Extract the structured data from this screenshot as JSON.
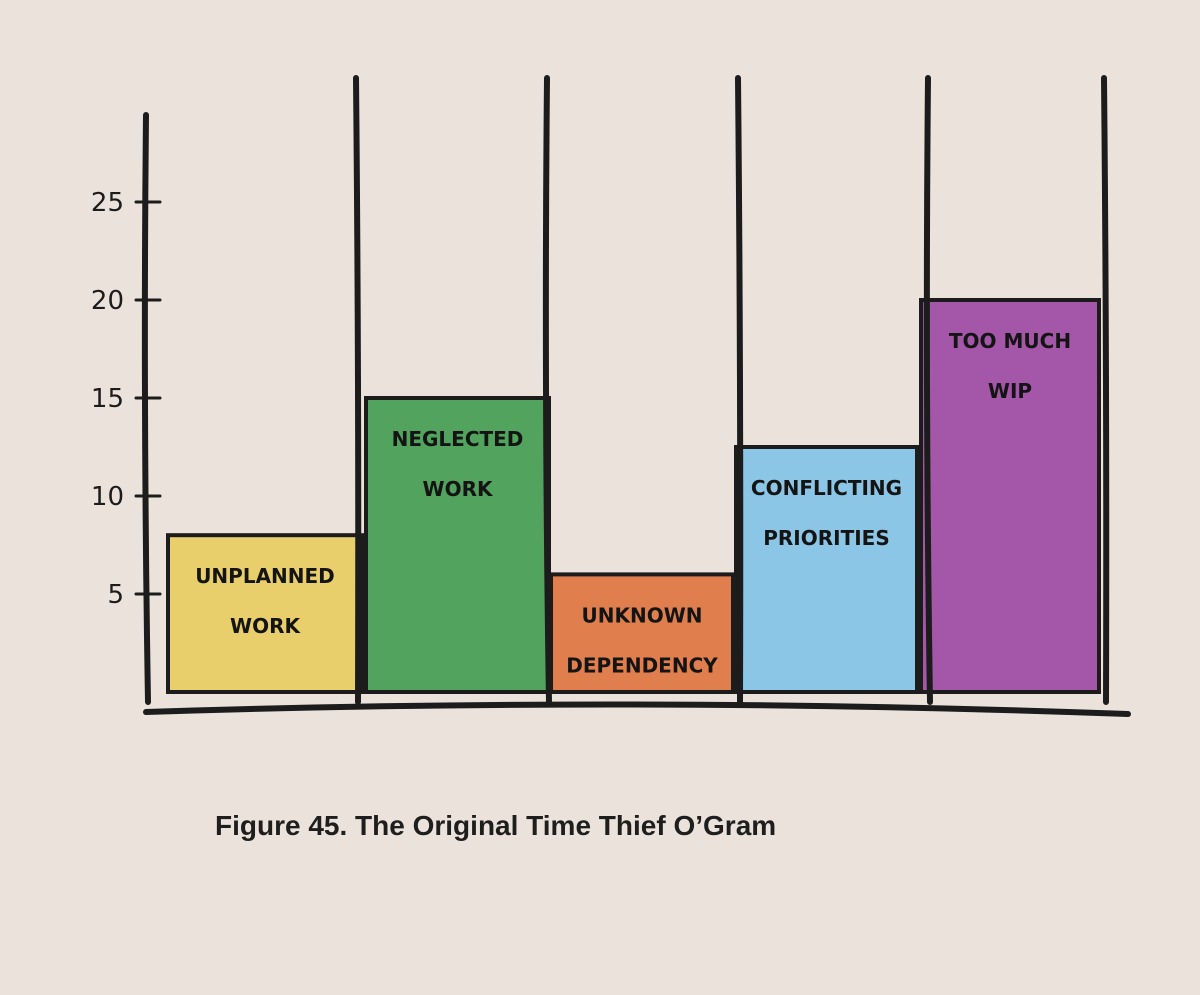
{
  "colors": {
    "page_background": "#ebe3db",
    "ink": "#1c1c1c"
  },
  "caption": "Figure 45. The Original Time Thief O’Gram",
  "chart_data": {
    "type": "bar",
    "title": "",
    "xlabel": "",
    "ylabel": "",
    "ylim": [
      0,
      28
    ],
    "yticks": [
      5,
      10,
      15,
      20,
      25
    ],
    "grid": false,
    "legend": "none",
    "categories": [
      [
        "UNPLANNED",
        "WORK"
      ],
      [
        "NEGLECTED",
        "WORK"
      ],
      [
        "UNKNOWN",
        "DEPENDENCY"
      ],
      [
        "CONFLICTING",
        "PRIORITIES"
      ],
      [
        "TOO MUCH",
        "WIP"
      ]
    ],
    "values": [
      8,
      15,
      6,
      12.5,
      20
    ],
    "colors": [
      "#e9cf6c",
      "#52a35d",
      "#e07e4e",
      "#8cc6e6",
      "#a456a8"
    ]
  }
}
